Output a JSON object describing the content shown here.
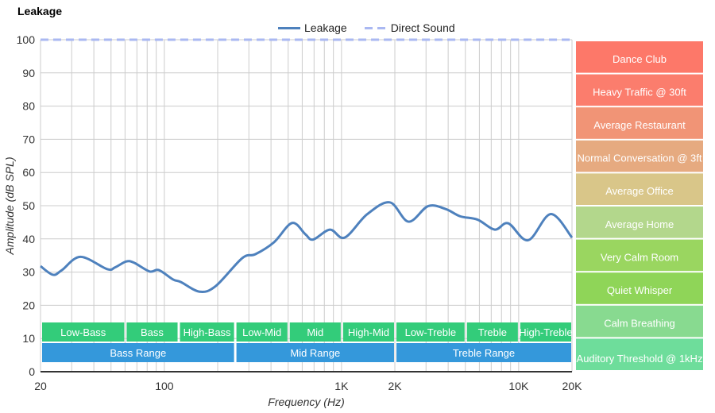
{
  "chart_data": {
    "type": "line",
    "title": "Leakage",
    "xlabel": "Frequency (Hz)",
    "ylabel": "Amplitude (dB SPL)",
    "xscale": "log",
    "xlim": [
      20,
      20000
    ],
    "ylim": [
      0,
      100
    ],
    "grid": true,
    "legend_position": "top-center",
    "x_ticks": [
      {
        "v": 20,
        "label": "20"
      },
      {
        "v": 100,
        "label": "100"
      },
      {
        "v": 1000,
        "label": "1K"
      },
      {
        "v": 2000,
        "label": "2K"
      },
      {
        "v": 10000,
        "label": "10K"
      },
      {
        "v": 20000,
        "label": "20K"
      }
    ],
    "y_ticks": [
      0,
      10,
      20,
      30,
      40,
      50,
      60,
      70,
      80,
      90,
      100
    ],
    "series": [
      {
        "name": "Leakage",
        "color": "#4e81bd",
        "style": "solid",
        "x": [
          20,
          23.5,
          26.4,
          33.6,
          47.5,
          52.6,
          61,
          67.6,
          82.5,
          93.1,
          111.8,
          124,
          158,
          195,
          275,
          327,
          416,
          526,
          625,
          691,
          861,
          1042,
          1394,
          1875,
          2390,
          3087,
          3872,
          4680,
          5862,
          7337,
          8734,
          11320,
          15180,
          20000
        ],
        "y": [
          31.8,
          29.2,
          30.6,
          34.6,
          30.9,
          31.4,
          33.2,
          32.8,
          30.2,
          30.6,
          27.8,
          27.0,
          24.1,
          25.8,
          34.2,
          35.4,
          39.0,
          44.8,
          41.4,
          39.8,
          42.8,
          40.4,
          47.4,
          51.0,
          45.2,
          49.9,
          49.0,
          46.8,
          45.8,
          42.8,
          44.7,
          39.6,
          47.5,
          40.4
        ]
      },
      {
        "name": "Direct Sound",
        "color": "#aab8f2",
        "style": "dashed",
        "x": [
          20,
          20000
        ],
        "y": [
          100,
          100
        ]
      }
    ],
    "bands": [
      {
        "label": "Low-Bass",
        "from": 20,
        "to": 60
      },
      {
        "label": "Bass",
        "from": 60,
        "to": 120
      },
      {
        "label": "High-Bass",
        "from": 120,
        "to": 250
      },
      {
        "label": "Low-Mid",
        "from": 250,
        "to": 500
      },
      {
        "label": "Mid",
        "from": 500,
        "to": 1000
      },
      {
        "label": "High-Mid",
        "from": 1000,
        "to": 2000
      },
      {
        "label": "Low-Treble",
        "from": 2000,
        "to": 5000
      },
      {
        "label": "Treble",
        "from": 5000,
        "to": 10000
      },
      {
        "label": "High-Treble",
        "from": 10000,
        "to": 20000
      }
    ],
    "ranges": [
      {
        "label": "Bass Range",
        "from": 20,
        "to": 250
      },
      {
        "label": "Mid Range",
        "from": 250,
        "to": 2000
      },
      {
        "label": "Treble Range",
        "from": 2000,
        "to": 20000
      }
    ],
    "band_color": "#33cc7a",
    "range_color": "#3498db",
    "reference_levels": [
      {
        "label": "Dance Club",
        "color": "#fd7869"
      },
      {
        "label": "Heavy Traffic @ 30ft",
        "color": "#fb7d6d"
      },
      {
        "label": "Average Restaurant",
        "color": "#f19476"
      },
      {
        "label": "Normal Conversation @ 3ft",
        "color": "#e6aa80"
      },
      {
        "label": "Average Office",
        "color": "#d9c689"
      },
      {
        "label": "Average Home",
        "color": "#b3d78c"
      },
      {
        "label": "Very Calm Room",
        "color": "#9ad660"
      },
      {
        "label": "Quiet Whisper",
        "color": "#8fd558"
      },
      {
        "label": "Calm Breathing",
        "color": "#88da90"
      },
      {
        "label": "Auditory Threshold @ 1kHz",
        "color": "#6edd9b"
      }
    ]
  }
}
